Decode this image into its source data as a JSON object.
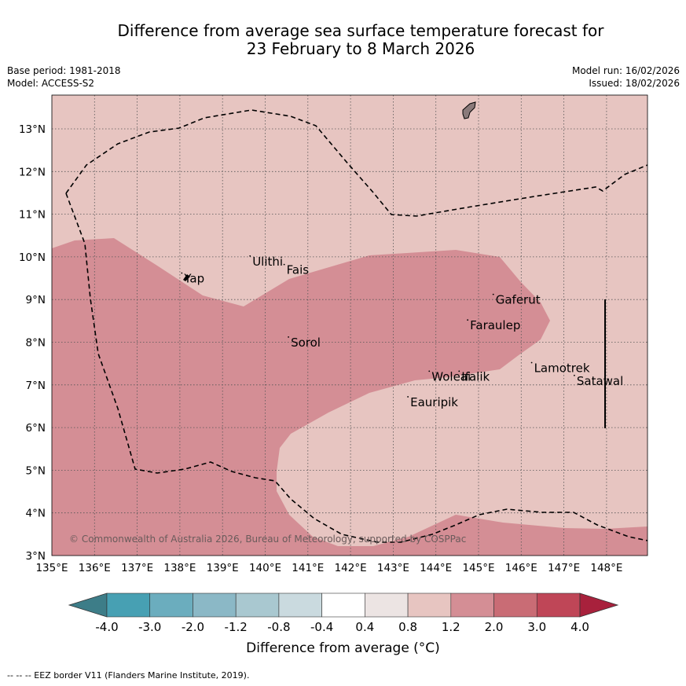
{
  "header": {
    "title_line1": "Difference from average sea surface temperature forecast for",
    "title_line2": "23 February to 8 March 2026",
    "base_period": "Base period: 1981-2018",
    "model": "Model: ACCESS-S2",
    "model_run": "Model run: 16/02/2026",
    "issued": "Issued: 18/02/2026"
  },
  "map": {
    "lon_labels": [
      "135°E",
      "136°E",
      "137°E",
      "138°E",
      "139°E",
      "140°E",
      "141°E",
      "142°E",
      "143°E",
      "144°E",
      "145°E",
      "146°E",
      "147°E",
      "148°E"
    ],
    "lat_labels": [
      "13°N",
      "12°N",
      "11°N",
      "10°N",
      "9°N",
      "8°N",
      "7°N",
      "6°N",
      "5°N",
      "4°N",
      "3°N"
    ],
    "places": [
      {
        "name": "Ulithi",
        "lon": 139.7,
        "lat": 9.8
      },
      {
        "name": "Yap",
        "lon": 138.1,
        "lat": 9.4
      },
      {
        "name": "Fais",
        "lon": 140.5,
        "lat": 9.6
      },
      {
        "name": "Gaferut",
        "lon": 145.4,
        "lat": 8.9
      },
      {
        "name": "Faraulep",
        "lon": 144.8,
        "lat": 8.3
      },
      {
        "name": "Sorol",
        "lon": 140.6,
        "lat": 7.9
      },
      {
        "name": "Lamotrek",
        "lon": 146.3,
        "lat": 7.3
      },
      {
        "name": "Woleai",
        "lon": 143.9,
        "lat": 7.1
      },
      {
        "name": "Ifalik",
        "lon": 144.6,
        "lat": 7.1
      },
      {
        "name": "Satawal",
        "lon": 147.3,
        "lat": 7.0
      },
      {
        "name": "Eauripik",
        "lon": 143.4,
        "lat": 6.5
      }
    ],
    "copyright": "© Commonwealth of Australia 2026, Bureau of Meteorology, supported by COSPPac",
    "colors": {
      "band_0_8_1_2": "#e7c5c1",
      "band_1_2_2_0": "#d48e95"
    }
  },
  "colorbar": {
    "ticks": [
      "-4.0",
      "-3.0",
      "-2.0",
      "-1.2",
      "-0.8",
      "-0.4",
      "0.4",
      "0.8",
      "1.2",
      "2.0",
      "3.0",
      "4.0"
    ],
    "colors": [
      "#3d7d88",
      "#47a0b3",
      "#6badbe",
      "#8bb8c6",
      "#a9c8d0",
      "#cadadf",
      "#ffffff",
      "#ece4e3",
      "#e7c5c1",
      "#d48e95",
      "#c96c75",
      "#bf4657",
      "#a8213c"
    ],
    "title": "Difference from average (°C)"
  },
  "footer": {
    "text": "--  --  -- EEZ border V11 (Flanders Marine Institute, 2019)."
  }
}
